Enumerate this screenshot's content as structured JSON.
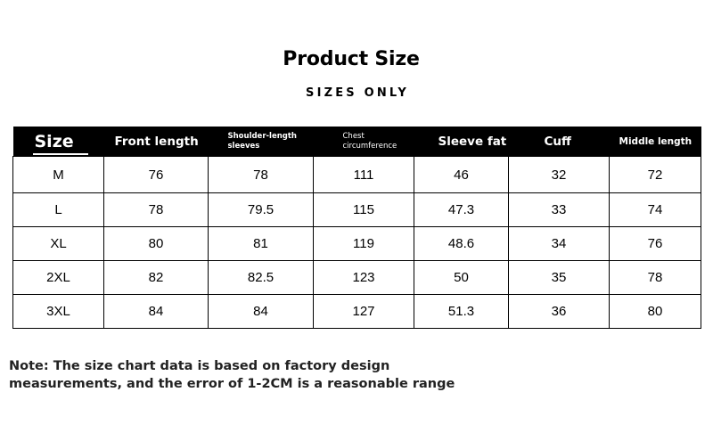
{
  "title": "Product Size",
  "subtitle": "SIZES ONLY",
  "table": {
    "headers": {
      "size": "Size",
      "front_length": "Front length",
      "shoulder_length_1": "Shoulder-length",
      "shoulder_length_2": "sleeves",
      "chest_1": "Chest",
      "chest_2": "circumference",
      "sleeve_fat": "Sleeve fat",
      "cuff": "Cuff",
      "middle_length": "Middle length"
    },
    "rows": [
      [
        "M",
        "76",
        "78",
        "111",
        "46",
        "32",
        "72"
      ],
      [
        "L",
        "78",
        "79.5",
        "115",
        "47.3",
        "33",
        "74"
      ],
      [
        "XL",
        "80",
        "81",
        "119",
        "48.6",
        "34",
        "76"
      ],
      [
        "2XL",
        "82",
        "82.5",
        "123",
        "50",
        "35",
        "78"
      ],
      [
        "3XL",
        "84",
        "84",
        "127",
        "51.3",
        "36",
        "80"
      ]
    ]
  },
  "note": {
    "line1": "Note: The size chart data is based on factory design",
    "line2": "measurements, and the error of 1-2CM is a reasonable range"
  }
}
